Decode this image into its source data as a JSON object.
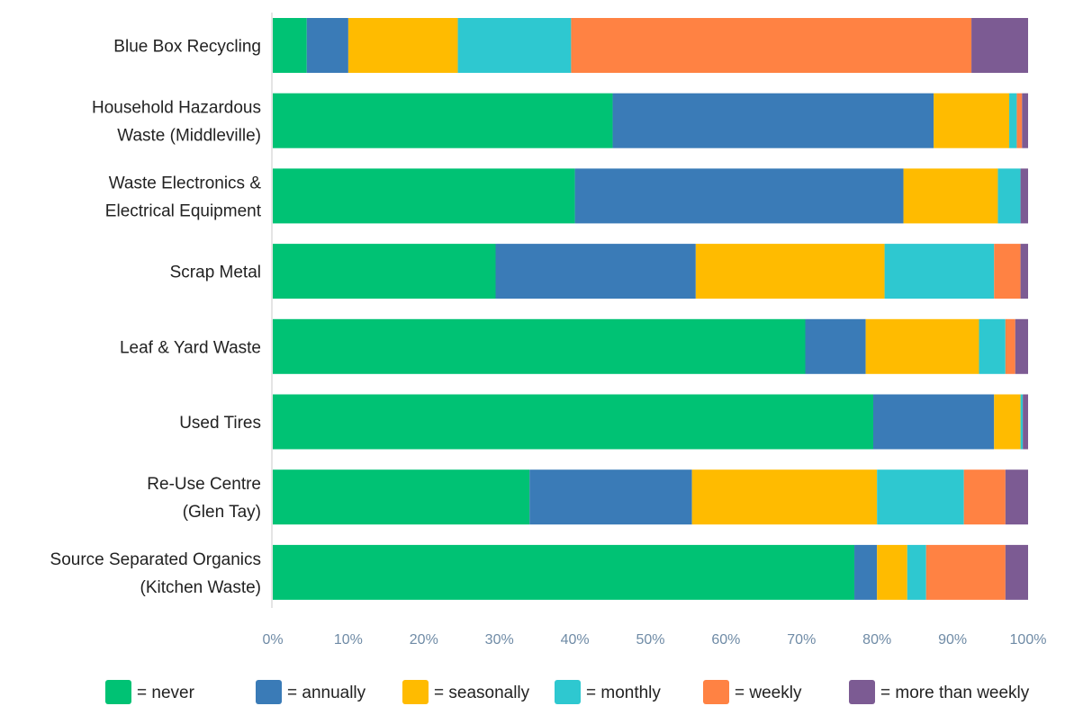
{
  "chart_data": {
    "type": "bar",
    "orientation": "horizontal",
    "stacked": true,
    "categories": [
      [
        "Blue Box Recycling"
      ],
      [
        "Household Hazardous",
        "Waste (Middleville)"
      ],
      [
        "Waste Electronics &",
        "Electrical Equipment"
      ],
      [
        "Scrap Metal"
      ],
      [
        "Leaf & Yard Waste"
      ],
      [
        "Used Tires"
      ],
      [
        "Re-Use Centre",
        "(Glen Tay)"
      ],
      [
        "Source Separated Organics",
        "(Kitchen Waste)"
      ]
    ],
    "series": [
      {
        "name": "= never",
        "color": "#00c274",
        "values": [
          4.5,
          45.0,
          40.0,
          29.5,
          70.5,
          79.5,
          34.0,
          77.0
        ]
      },
      {
        "name": "= annually",
        "color": "#3a7bb7",
        "values": [
          5.5,
          42.5,
          43.5,
          26.5,
          8.0,
          16.0,
          21.5,
          3.0
        ]
      },
      {
        "name": "= seasonally",
        "color": "#ffbb00",
        "values": [
          14.5,
          10.0,
          12.5,
          25.0,
          15.0,
          3.5,
          24.5,
          4.0
        ]
      },
      {
        "name": "= monthly",
        "color": "#2ec8d0",
        "values": [
          15.0,
          1.0,
          3.0,
          14.5,
          3.5,
          0.3,
          11.5,
          2.5
        ]
      },
      {
        "name": "= weekly",
        "color": "#ff8243",
        "values": [
          53.0,
          0.7,
          0.0,
          3.5,
          1.3,
          0.0,
          5.5,
          10.5
        ]
      },
      {
        "name": "= more than weekly",
        "color": "#7c5b93",
        "values": [
          7.5,
          0.8,
          1.0,
          1.0,
          1.7,
          0.7,
          3.0,
          3.0
        ]
      }
    ],
    "xlim": [
      0,
      100
    ],
    "xticks": [
      "0%",
      "10%",
      "20%",
      "30%",
      "40%",
      "50%",
      "60%",
      "70%",
      "80%",
      "90%",
      "100%"
    ],
    "title": "",
    "xlabel": "",
    "ylabel": "",
    "grid": false,
    "legend_position": "bottom"
  }
}
